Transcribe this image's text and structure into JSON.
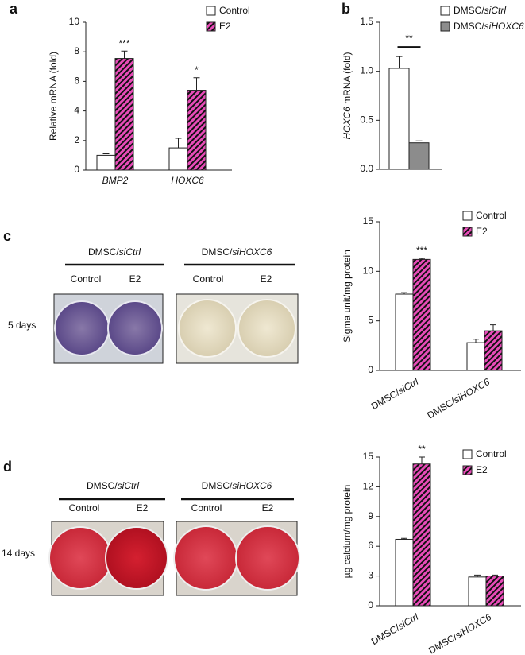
{
  "chart_data": [
    {
      "type": "bar",
      "panel": "a",
      "ylabel": "Relative mRNA (fold)",
      "categories": [
        "BMP2",
        "HOXC6"
      ],
      "series": [
        {
          "name": "Control",
          "color": "#ffffff",
          "values": [
            1.0,
            1.5
          ],
          "errors": [
            0.1,
            0.65
          ]
        },
        {
          "name": "E2",
          "color": "#e84bb8",
          "hatch": true,
          "values": [
            7.55,
            5.4
          ],
          "errors": [
            0.5,
            0.85
          ],
          "annotations": [
            "***",
            "*"
          ]
        }
      ],
      "ylim": [
        0,
        10
      ],
      "yticks": [
        0,
        2,
        4,
        6,
        8,
        10
      ]
    },
    {
      "type": "bar",
      "panel": "b",
      "ylabel": "HOXC6 mRNA (fold)",
      "categories": [
        null
      ],
      "series": [
        {
          "name": "DMSC/siCtrl",
          "color": "#ffffff",
          "values": [
            1.03
          ],
          "errors": [
            0.12
          ]
        },
        {
          "name": "DMSC/siHOXC6",
          "color": "#8c8c8c",
          "values": [
            0.27
          ],
          "errors": [
            0.02
          ]
        }
      ],
      "annotation": "**",
      "ylim": [
        0,
        1.5
      ],
      "yticks": [
        {
          "value": 0,
          "label": "0.0"
        },
        0.5,
        {
          "value": 1,
          "label": "1.0"
        },
        1.5
      ]
    },
    {
      "type": "bar",
      "panel": "c",
      "ylabel": "Sigma unit/mg protein",
      "categories": [
        "DMSC/siCtrl",
        "DMSC/siHOXC6"
      ],
      "series": [
        {
          "name": "Control",
          "color": "#ffffff",
          "values": [
            7.7,
            2.8
          ],
          "errors": [
            0.15,
            0.35
          ]
        },
        {
          "name": "E2",
          "color": "#e84bb8",
          "hatch": true,
          "values": [
            11.2,
            4.0
          ],
          "errors": [
            0.1,
            0.6
          ],
          "annotations": [
            "***",
            null
          ]
        }
      ],
      "ylim": [
        0,
        15
      ],
      "yticks": [
        0,
        5,
        10,
        15
      ]
    },
    {
      "type": "bar",
      "panel": "d",
      "ylabel": "µg calcium/mg protein",
      "categories": [
        "DMSC/siCtrl",
        "DMSC/siHOXC6"
      ],
      "series": [
        {
          "name": "Control",
          "color": "#ffffff",
          "values": [
            6.7,
            2.9
          ],
          "errors": [
            0.1,
            0.2
          ]
        },
        {
          "name": "E2",
          "color": "#e84bb8",
          "hatch": true,
          "values": [
            14.3,
            3.0
          ],
          "errors": [
            0.7,
            0.1
          ],
          "annotations": [
            "**",
            null
          ]
        }
      ],
      "ylim": [
        0,
        15
      ],
      "yticks": [
        0,
        3,
        6,
        9,
        12,
        15
      ]
    }
  ],
  "photos": [
    {
      "group_labels": [
        "DMSC/siCtrl",
        "DMSC/siHOXC6"
      ],
      "well_labels": [
        "Control",
        "E2",
        "Control",
        "E2"
      ],
      "time": "5 days"
    },
    {
      "group_labels": [
        "DMSC/siCtrl",
        "DMSC/siHOXC6"
      ],
      "well_labels": [
        "Control",
        "E2",
        "Control",
        "E2"
      ],
      "time": "14 days"
    }
  ]
}
